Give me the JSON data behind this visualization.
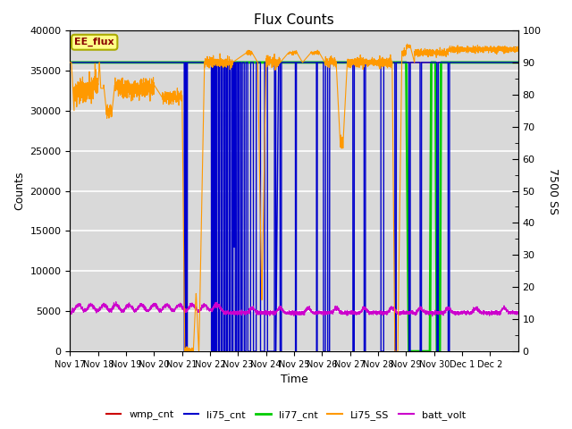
{
  "title": "Flux Counts",
  "xlabel": "Time",
  "ylabel_left": "Counts",
  "ylabel_right": "7500 SS",
  "ylim_left": [
    0,
    40000
  ],
  "ylim_right": [
    0,
    100
  ],
  "background_color": "#d8d8d8",
  "plot_bg_color": "#e8e8e8",
  "annotation_text": "EE_flux",
  "grid_color": "#ffffff",
  "xtick_labels": [
    "Nov 17",
    "Nov 18",
    "Nov 19",
    "Nov 20",
    "Nov 21",
    "Nov 22",
    "Nov 23",
    "Nov 24",
    "Nov 25",
    "Nov 26",
    "Nov 27",
    "Nov 28",
    "Nov 29",
    "Nov 30",
    "Dec 1",
    "Dec 2"
  ],
  "legend_entries": [
    "wmp_cnt",
    "li75_cnt",
    "li77_cnt",
    "Li75_SS",
    "batt_volt"
  ],
  "legend_colors": [
    "#cc0000",
    "#0000dd",
    "#00cc00",
    "#ff9900",
    "#cc00cc"
  ],
  "n_days": 16
}
